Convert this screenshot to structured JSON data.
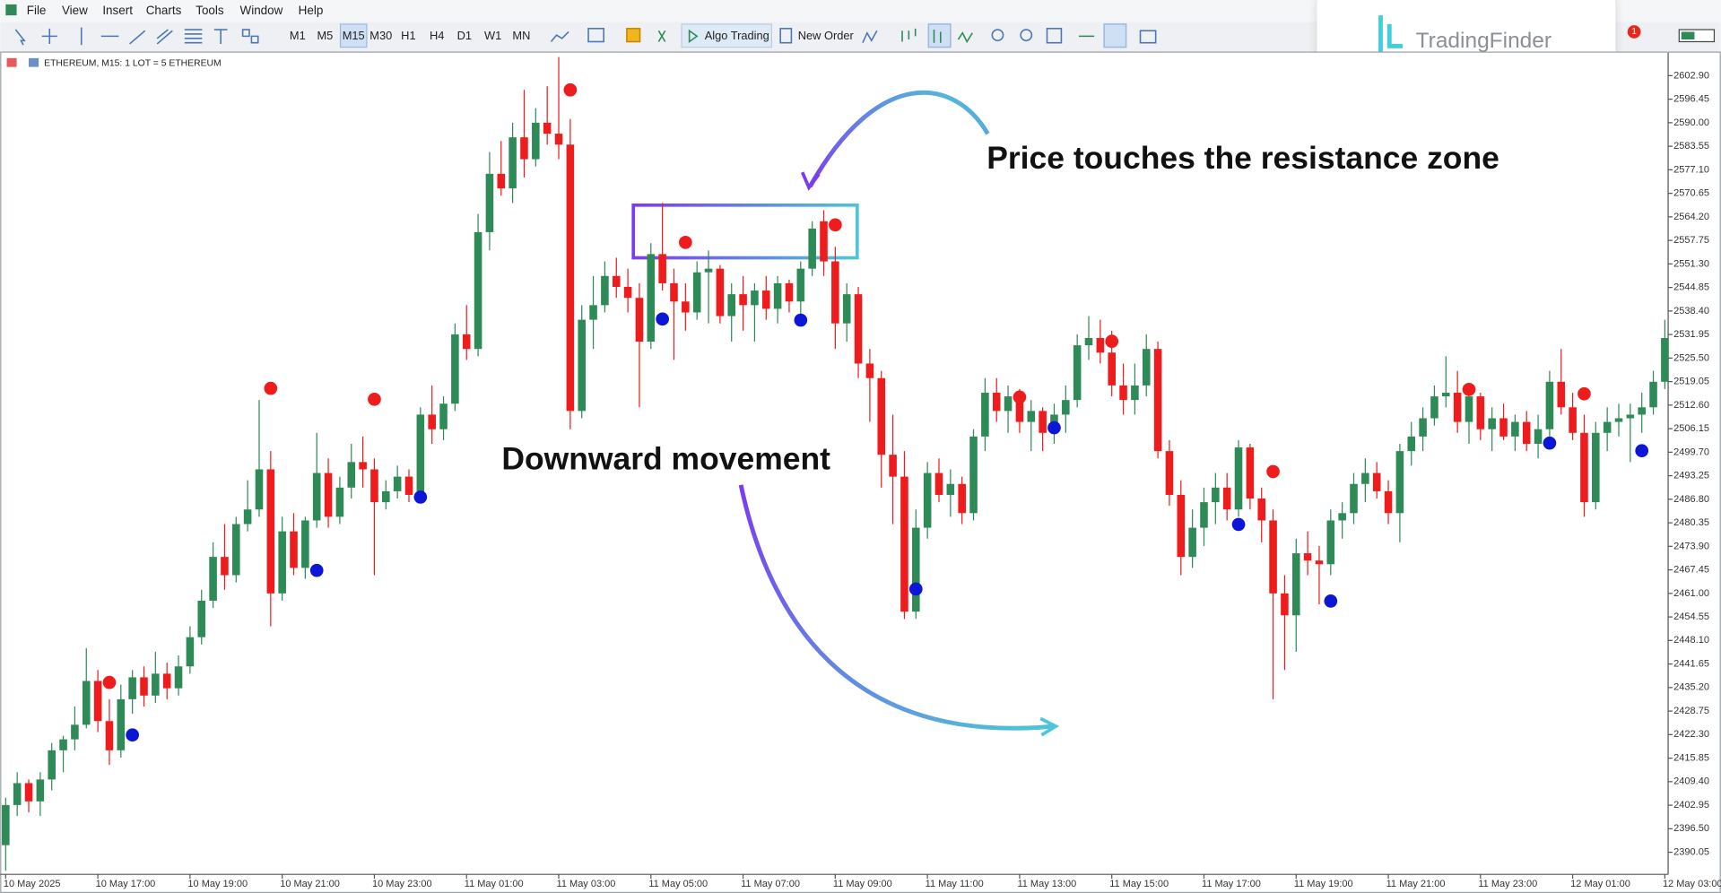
{
  "ui": {
    "menu": [
      "File",
      "View",
      "Insert",
      "Charts",
      "Tools",
      "Window",
      "Help"
    ],
    "timeframes": [
      "M1",
      "M5",
      "M15",
      "M30",
      "H1",
      "H4",
      "D1",
      "W1",
      "MN"
    ],
    "buttons": [
      "Algo Trading",
      "New Order"
    ],
    "logo": "TradingFinder",
    "badge": "1",
    "symbol": "ETHEREUM, M15:  1 LOT = 5 ETHEREUM"
  },
  "chart_data": {
    "type": "candlestick",
    "annotations": [
      "Price touches the resistance zone",
      "Downward movement"
    ],
    "up_color": "#2e8b57",
    "down_color": "#ee1c1c",
    "ylim": [
      2384.0,
      2608.6
    ],
    "yticks": [
      {
        "value": 2602.9,
        "label": "2602.90"
      },
      {
        "value": 2596.45,
        "label": "2596.45"
      },
      {
        "value": 2590,
        "label": "2590.00"
      },
      {
        "value": 2583.55,
        "label": "2583.55"
      },
      {
        "value": 2577.1,
        "label": "2577.10"
      },
      {
        "value": 2570.65,
        "label": "2570.65"
      },
      {
        "value": 2564.2,
        "label": "2564.20"
      },
      {
        "value": 2557.75,
        "label": "2557.75"
      },
      {
        "value": 2551.3,
        "label": "2551.30"
      },
      {
        "value": 2544.85,
        "label": "2544.85"
      },
      {
        "value": 2538.4,
        "label": "2538.40"
      },
      {
        "value": 2531.95,
        "label": "2531.95"
      },
      {
        "value": 2525.5,
        "label": "2525.50"
      },
      {
        "value": 2519.05,
        "label": "2519.05"
      },
      {
        "value": 2512.6,
        "label": "2512.60"
      },
      {
        "value": 2506.15,
        "label": "2506.15"
      },
      {
        "value": 2499.7,
        "label": "2499.70"
      },
      {
        "value": 2493.25,
        "label": "2493.25"
      },
      {
        "value": 2486.8,
        "label": "2486.80"
      },
      {
        "value": 2480.35,
        "label": "2480.35"
      },
      {
        "value": 2473.9,
        "label": "2473.90"
      },
      {
        "value": 2467.45,
        "label": "2467.45"
      },
      {
        "value": 2461,
        "label": "2461.00"
      },
      {
        "value": 2454.55,
        "label": "2454.55"
      },
      {
        "value": 2448.1,
        "label": "2448.10"
      },
      {
        "value": 2441.65,
        "label": "2441.65"
      },
      {
        "value": 2435.2,
        "label": "2435.20"
      },
      {
        "value": 2428.75,
        "label": "2428.75"
      },
      {
        "value": 2422.3,
        "label": "2422.30"
      },
      {
        "value": 2415.85,
        "label": "2415.85"
      },
      {
        "value": 2409.4,
        "label": "2409.40"
      },
      {
        "value": 2402.95,
        "label": "2402.95"
      },
      {
        "value": 2396.5,
        "label": "2396.50"
      },
      {
        "value": 2390.05,
        "label": "2390.05"
      }
    ],
    "categories": [
      "10 May 2025",
      null,
      null,
      null,
      null,
      null,
      null,
      null,
      "10 May 17:00",
      null,
      null,
      null,
      null,
      null,
      null,
      null,
      "10 May 19:00",
      null,
      null,
      null,
      null,
      null,
      null,
      null,
      "10 May 21:00",
      null,
      null,
      null,
      null,
      null,
      null,
      null,
      "10 May 23:00",
      null,
      null,
      null,
      null,
      null,
      null,
      null,
      "11 May 01:00",
      null,
      null,
      null,
      null,
      null,
      null,
      null,
      "11 May 03:00",
      null,
      null,
      null,
      null,
      null,
      null,
      null,
      "11 May 05:00",
      null,
      null,
      null,
      null,
      null,
      null,
      null,
      "11 May 07:00",
      null,
      null,
      null,
      null,
      null,
      null,
      null,
      "11 May 09:00",
      null,
      null,
      null,
      null,
      null,
      null,
      null,
      "11 May 11:00",
      null,
      null,
      null,
      null,
      null,
      null,
      null,
      "11 May 13:00",
      null,
      null,
      null,
      null,
      null,
      null,
      null,
      "11 May 15:00",
      null,
      null,
      null,
      null,
      null,
      null,
      null,
      "11 May 17:00",
      null,
      null,
      null,
      null,
      null,
      null,
      null,
      "11 May 19:00",
      null,
      null,
      null,
      null,
      null,
      null,
      null,
      "11 May 21:00",
      null,
      null,
      null,
      null,
      null,
      null,
      null,
      "11 May 23:00",
      null,
      null,
      null,
      null,
      null,
      null,
      null,
      "12 May 01:00",
      null,
      null,
      null,
      null,
      null,
      null,
      null,
      "12 May 03:00"
    ],
    "candles": [
      [
        2392,
        2405,
        2385,
        2403
      ],
      [
        2403,
        2412,
        2400,
        2409
      ],
      [
        2409,
        2410,
        2401,
        2404
      ],
      [
        2404,
        2412,
        2400,
        2410
      ],
      [
        2410,
        2420,
        2407,
        2418
      ],
      [
        2418,
        2422,
        2412,
        2421
      ],
      [
        2421,
        2430,
        2418,
        2425
      ],
      [
        2425,
        2446,
        2424,
        2437
      ],
      [
        2437,
        2440,
        2423,
        2426
      ],
      [
        2426,
        2432,
        2414,
        2418
      ],
      [
        2418,
        2436,
        2416,
        2432
      ],
      [
        2432,
        2440,
        2428,
        2438
      ],
      [
        2438,
        2441,
        2430,
        2433
      ],
      [
        2433,
        2445,
        2431,
        2439
      ],
      [
        2439,
        2442,
        2432,
        2435
      ],
      [
        2435,
        2444,
        2433,
        2441
      ],
      [
        2441,
        2452,
        2439,
        2449
      ],
      [
        2449,
        2462,
        2447,
        2459
      ],
      [
        2459,
        2475,
        2457,
        2471
      ],
      [
        2471,
        2480,
        2462,
        2466
      ],
      [
        2466,
        2482,
        2464,
        2480
      ],
      [
        2480,
        2492,
        2478,
        2484
      ],
      [
        2484,
        2514,
        2482,
        2495
      ],
      [
        2495,
        2500,
        2452,
        2461
      ],
      [
        2461,
        2482,
        2459,
        2478
      ],
      [
        2478,
        2483,
        2466,
        2468
      ],
      [
        2468,
        2482,
        2465,
        2481
      ],
      [
        2481,
        2505,
        2479,
        2494
      ],
      [
        2494,
        2498,
        2479,
        2482
      ],
      [
        2482,
        2493,
        2480,
        2490
      ],
      [
        2490,
        2502,
        2487,
        2497
      ],
      [
        2497,
        2504,
        2490,
        2495
      ],
      [
        2495,
        2498,
        2466,
        2486
      ],
      [
        2486,
        2492,
        2484,
        2489
      ],
      [
        2489,
        2496,
        2487,
        2493
      ],
      [
        2493,
        2495,
        2486,
        2488
      ],
      [
        2488,
        2512,
        2486,
        2510
      ],
      [
        2510,
        2518,
        2502,
        2506
      ],
      [
        2506,
        2515,
        2503,
        2513
      ],
      [
        2513,
        2535,
        2511,
        2532
      ],
      [
        2532,
        2540,
        2525,
        2528
      ],
      [
        2528,
        2565,
        2526,
        2560
      ],
      [
        2560,
        2582,
        2555,
        2576
      ],
      [
        2576,
        2585,
        2570,
        2572
      ],
      [
        2572,
        2590,
        2568,
        2586
      ],
      [
        2586,
        2599,
        2575,
        2580
      ],
      [
        2580,
        2594,
        2578,
        2590
      ],
      [
        2590,
        2600,
        2584,
        2587
      ],
      [
        2587,
        2608,
        2580,
        2584
      ],
      [
        2584,
        2591,
        2506,
        2511
      ],
      [
        2511,
        2540,
        2509,
        2536
      ],
      [
        2536,
        2548,
        2528,
        2540
      ],
      [
        2540,
        2552,
        2538,
        2548
      ],
      [
        2548,
        2553,
        2542,
        2545
      ],
      [
        2545,
        2550,
        2538,
        2542
      ],
      [
        2542,
        2546,
        2512,
        2530
      ],
      [
        2530,
        2557,
        2528,
        2554
      ],
      [
        2554,
        2568,
        2544,
        2546
      ],
      [
        2546,
        2550,
        2525,
        2541
      ],
      [
        2541,
        2546,
        2533,
        2538
      ],
      [
        2538,
        2552,
        2536,
        2549
      ],
      [
        2549,
        2555,
        2535,
        2550
      ],
      [
        2550,
        2551,
        2535,
        2537
      ],
      [
        2537,
        2546,
        2530,
        2543
      ],
      [
        2543,
        2548,
        2533,
        2540
      ],
      [
        2540,
        2546,
        2530,
        2544
      ],
      [
        2544,
        2548,
        2536,
        2539
      ],
      [
        2539,
        2548,
        2535,
        2546
      ],
      [
        2546,
        2547,
        2538,
        2541
      ],
      [
        2541,
        2552,
        2536,
        2550
      ],
      [
        2550,
        2563,
        2548,
        2561
      ],
      [
        2563,
        2566,
        2548,
        2552
      ],
      [
        2552,
        2556,
        2528,
        2535
      ],
      [
        2535,
        2546,
        2530,
        2543
      ],
      [
        2543,
        2545,
        2520,
        2524
      ],
      [
        2524,
        2528,
        2508,
        2520
      ],
      [
        2520,
        2522,
        2490,
        2499
      ],
      [
        2499,
        2510,
        2480,
        2493
      ],
      [
        2493,
        2500,
        2454,
        2456
      ],
      [
        2456,
        2484,
        2454,
        2479
      ],
      [
        2479,
        2497,
        2476,
        2494
      ],
      [
        2494,
        2498,
        2486,
        2488
      ],
      [
        2488,
        2495,
        2482,
        2491
      ],
      [
        2491,
        2493,
        2480,
        2483
      ],
      [
        2483,
        2506,
        2481,
        2504
      ],
      [
        2504,
        2520,
        2500,
        2516
      ],
      [
        2516,
        2520,
        2508,
        2511
      ],
      [
        2511,
        2518,
        2505,
        2515
      ],
      [
        2515,
        2517,
        2505,
        2508
      ],
      [
        2508,
        2514,
        2500,
        2511
      ],
      [
        2511,
        2512,
        2500,
        2505
      ],
      [
        2505,
        2513,
        2502,
        2510
      ],
      [
        2510,
        2518,
        2505,
        2514
      ],
      [
        2514,
        2532,
        2512,
        2529
      ],
      [
        2529,
        2537,
        2525,
        2531
      ],
      [
        2531,
        2536,
        2524,
        2527
      ],
      [
        2527,
        2533,
        2515,
        2518
      ],
      [
        2518,
        2524,
        2510,
        2514
      ],
      [
        2514,
        2524,
        2510,
        2518
      ],
      [
        2518,
        2532,
        2515,
        2528
      ],
      [
        2528,
        2530,
        2498,
        2500
      ],
      [
        2500,
        2503,
        2485,
        2488
      ],
      [
        2488,
        2492,
        2466,
        2471
      ],
      [
        2471,
        2484,
        2468,
        2479
      ],
      [
        2479,
        2490,
        2474,
        2486
      ],
      [
        2486,
        2494,
        2480,
        2490
      ],
      [
        2490,
        2494,
        2481,
        2484
      ],
      [
        2484,
        2503,
        2482,
        2501
      ],
      [
        2501,
        2502,
        2484,
        2487
      ],
      [
        2487,
        2490,
        2475,
        2481
      ],
      [
        2481,
        2484,
        2432,
        2461
      ],
      [
        2461,
        2466,
        2440,
        2455
      ],
      [
        2455,
        2476,
        2445,
        2472
      ],
      [
        2472,
        2478,
        2466,
        2470
      ],
      [
        2470,
        2474,
        2458,
        2469
      ],
      [
        2469,
        2484,
        2466,
        2481
      ],
      [
        2481,
        2486,
        2476,
        2483
      ],
      [
        2483,
        2494,
        2480,
        2491
      ],
      [
        2491,
        2498,
        2486,
        2494
      ],
      [
        2494,
        2497,
        2487,
        2489
      ],
      [
        2489,
        2492,
        2480,
        2483
      ],
      [
        2483,
        2502,
        2475,
        2500
      ],
      [
        2500,
        2508,
        2496,
        2504
      ],
      [
        2504,
        2512,
        2500,
        2509
      ],
      [
        2509,
        2518,
        2507,
        2515
      ],
      [
        2515,
        2526,
        2512,
        2516
      ],
      [
        2516,
        2522,
        2505,
        2508
      ],
      [
        2508,
        2518,
        2502,
        2515
      ],
      [
        2515,
        2516,
        2503,
        2506
      ],
      [
        2506,
        2512,
        2500,
        2509
      ],
      [
        2509,
        2513,
        2503,
        2504
      ],
      [
        2504,
        2510,
        2500,
        2508
      ],
      [
        2508,
        2511,
        2500,
        2502
      ],
      [
        2502,
        2510,
        2498,
        2506
      ],
      [
        2506,
        2522,
        2504,
        2519
      ],
      [
        2519,
        2528,
        2510,
        2512
      ],
      [
        2512,
        2516,
        2503,
        2505
      ],
      [
        2505,
        2510,
        2482,
        2486
      ],
      [
        2486,
        2508,
        2484,
        2505
      ],
      [
        2505,
        2512,
        2500,
        2508
      ],
      [
        2508,
        2513,
        2504,
        2509
      ],
      [
        2509,
        2513,
        2497,
        2510
      ],
      [
        2510,
        2516,
        2505,
        2512
      ],
      [
        2512,
        2522,
        2510,
        2519
      ],
      [
        2519,
        2536,
        2517,
        2531
      ]
    ],
    "red_dots": {
      "color": "#ee1c1c",
      "values": [
        null,
        null,
        null,
        null,
        null,
        null,
        null,
        null,
        null,
        2436.6,
        null,
        null,
        null,
        null,
        null,
        null,
        null,
        null,
        null,
        null,
        null,
        null,
        null,
        2517.2,
        null,
        null,
        null,
        null,
        null,
        null,
        null,
        null,
        2514.2,
        null,
        null,
        null,
        null,
        null,
        null,
        null,
        null,
        null,
        null,
        null,
        null,
        null,
        null,
        null,
        null,
        2599.0,
        null,
        null,
        null,
        null,
        null,
        null,
        null,
        null,
        null,
        2557.2,
        null,
        null,
        null,
        null,
        null,
        null,
        null,
        null,
        null,
        null,
        null,
        null,
        2562.0,
        null,
        null,
        null,
        null,
        null,
        null,
        null,
        null,
        null,
        null,
        null,
        null,
        null,
        null,
        null,
        2514.8,
        null,
        null,
        null,
        null,
        null,
        null,
        null,
        2530.1,
        null,
        null,
        null,
        null,
        null,
        null,
        null,
        null,
        null,
        null,
        null,
        null,
        null,
        2494.4,
        null,
        null,
        null,
        null,
        null,
        null,
        null,
        null,
        null,
        null,
        null,
        null,
        null,
        null,
        null,
        null,
        2516.9,
        null,
        null,
        null,
        null,
        null,
        null,
        null,
        null,
        null,
        2515.7,
        null,
        null,
        null,
        null,
        null,
        null,
        null
      ]
    },
    "blue_dots": {
      "color": "#0b16d6",
      "values": [
        null,
        null,
        null,
        null,
        null,
        null,
        null,
        null,
        null,
        null,
        null,
        2422.2,
        null,
        null,
        null,
        null,
        null,
        null,
        null,
        null,
        null,
        null,
        null,
        null,
        null,
        null,
        null,
        2467.3,
        null,
        null,
        null,
        null,
        null,
        null,
        null,
        null,
        2487.4,
        null,
        null,
        null,
        null,
        null,
        null,
        null,
        null,
        null,
        null,
        null,
        null,
        null,
        null,
        null,
        null,
        null,
        null,
        null,
        null,
        2536.2,
        null,
        null,
        null,
        null,
        null,
        null,
        null,
        null,
        null,
        null,
        null,
        2535.9,
        null,
        null,
        null,
        null,
        null,
        null,
        null,
        null,
        null,
        2462.2,
        null,
        null,
        null,
        null,
        null,
        null,
        null,
        null,
        null,
        null,
        null,
        2506.4,
        null,
        null,
        null,
        null,
        null,
        null,
        null,
        null,
        null,
        null,
        null,
        null,
        null,
        null,
        null,
        2479.9,
        null,
        null,
        null,
        null,
        null,
        null,
        null,
        2458.9,
        null,
        null,
        null,
        null,
        null,
        null,
        null,
        null,
        null,
        null,
        null,
        null,
        null,
        null,
        null,
        null,
        null,
        null,
        2502.2,
        null,
        null,
        null,
        null,
        null,
        null,
        null,
        2500.1,
        null,
        null
      ]
    }
  }
}
